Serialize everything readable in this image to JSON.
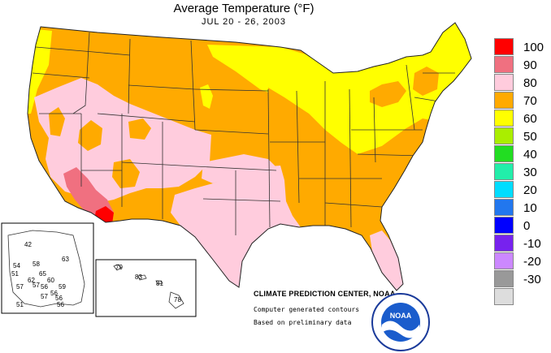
{
  "title": "Average Temperature (°F)",
  "subtitle": "JUL 20 - 26, 2003",
  "legend": [
    {
      "label": "100",
      "color": "#ff0000"
    },
    {
      "label": "90",
      "color": "#f07080"
    },
    {
      "label": "80",
      "color": "#ffccdd"
    },
    {
      "label": "70",
      "color": "#ffaa00"
    },
    {
      "label": "60",
      "color": "#ffff00"
    },
    {
      "label": "50",
      "color": "#aaee00"
    },
    {
      "label": "40",
      "color": "#22dd22"
    },
    {
      "label": "30",
      "color": "#22eeaa"
    },
    {
      "label": "20",
      "color": "#00ddff"
    },
    {
      "label": "10",
      "color": "#2277ee"
    },
    {
      "label": "0",
      "color": "#0000ff"
    },
    {
      "label": "-10",
      "color": "#7722ee"
    },
    {
      "label": "-20",
      "color": "#cc88ff"
    },
    {
      "label": "-30",
      "color": "#999999"
    },
    {
      "label": "",
      "color": "#dddddd"
    }
  ],
  "agency": "CLIMATE PREDICTION CENTER, NOAA",
  "note_contours": "Computer generated contours",
  "note_data": "Based on preliminary data",
  "noaa_logo_text": "NOAA",
  "alaska_values": [
    "42",
    "54",
    "58",
    "65",
    "51",
    "62",
    "60",
    "57",
    "57",
    "56",
    "59",
    "56",
    "56",
    "56",
    "57",
    "51",
    "63"
  ],
  "hawaii_values": [
    "79",
    "83",
    "81",
    "78"
  ]
}
